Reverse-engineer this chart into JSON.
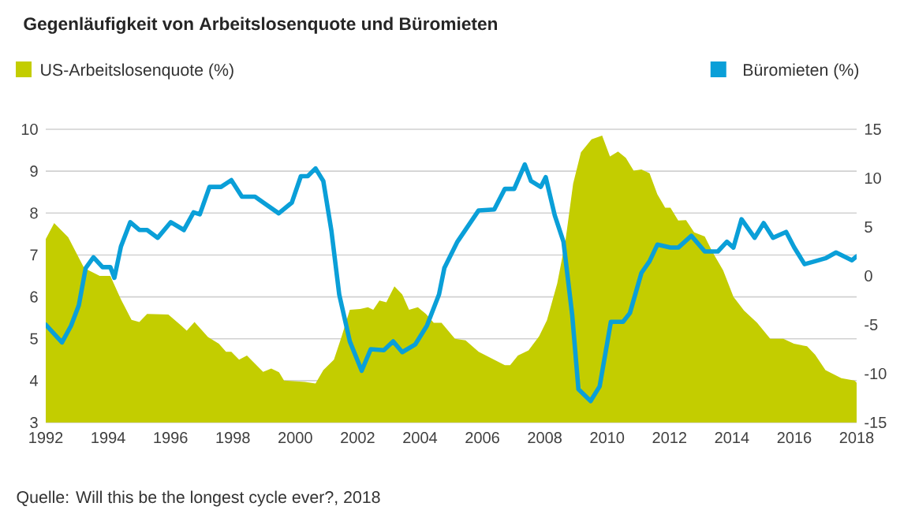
{
  "chart_data": {
    "type": "area",
    "title": "Gegenläufigkeit von Arbeitslosenquote und Büromieten",
    "annotations": [
      "Quelle: Will this be the longest cycle ever?, 2018"
    ],
    "xlim": [
      1992,
      2018
    ],
    "xticks": [
      1992,
      1994,
      1996,
      1998,
      2000,
      2002,
      2004,
      2006,
      2008,
      2010,
      2012,
      2014,
      2016,
      2018
    ],
    "ylim": [
      3,
      10
    ],
    "yticks": [
      3,
      4,
      5,
      6,
      7,
      8,
      9,
      10
    ],
    "y2lim": [
      -15,
      15
    ],
    "y2ticks": [
      -15,
      -10,
      -5,
      0,
      5,
      10,
      15
    ],
    "grid": "y",
    "legend": "top",
    "series": [
      {
        "name": "US-Arbeitslosenquote (%)",
        "color": "#c3cd00",
        "x": [
          1992,
          1992.27,
          1992.72,
          1993.23,
          1993.73,
          1994.07,
          1994.41,
          1994.75,
          1995.0,
          1995.25,
          1995.93,
          1996.35,
          1996.52,
          1996.77,
          1997.2,
          1997.55,
          1997.78,
          1997.95,
          1998.2,
          1998.45,
          1998.97,
          1999.23,
          1999.48,
          1999.64,
          2000.31,
          2000.65,
          2000.9,
          2001.24,
          2001.49,
          2001.75,
          2002.08,
          2002.33,
          2002.5,
          2002.7,
          2002.92,
          2003.18,
          2003.43,
          2003.65,
          2003.93,
          2004.19,
          2004.44,
          2004.69,
          2005.12,
          2005.46,
          2005.88,
          2006.3,
          2006.72,
          2006.89,
          2007.14,
          2007.48,
          2007.82,
          2008.07,
          2008.4,
          2008.66,
          2008.91,
          2009.16,
          2009.5,
          2009.84,
          2010.09,
          2010.35,
          2010.6,
          2010.85,
          2011.1,
          2011.36,
          2011.61,
          2011.86,
          2012.03,
          2012.28,
          2012.53,
          2012.79,
          2013.13,
          2013.38,
          2013.72,
          2014.05,
          2014.39,
          2014.81,
          2015.23,
          2015.65,
          2015.99,
          2016.41,
          2016.67,
          2017.0,
          2017.51,
          2017.93,
          2018
        ],
        "values": [
          7.38,
          7.76,
          7.42,
          6.69,
          6.5,
          6.5,
          5.94,
          5.45,
          5.4,
          5.59,
          5.58,
          5.31,
          5.19,
          5.4,
          5.04,
          4.88,
          4.69,
          4.69,
          4.5,
          4.6,
          4.21,
          4.29,
          4.2,
          4.0,
          3.97,
          3.93,
          4.25,
          4.5,
          5.06,
          5.69,
          5.71,
          5.75,
          5.69,
          5.91,
          5.87,
          6.25,
          6.06,
          5.69,
          5.75,
          5.59,
          5.38,
          5.38,
          5.0,
          4.96,
          4.69,
          4.53,
          4.37,
          4.37,
          4.6,
          4.72,
          5.06,
          5.44,
          6.32,
          7.32,
          8.7,
          9.45,
          9.76,
          9.85,
          9.35,
          9.47,
          9.32,
          9.01,
          9.04,
          8.95,
          8.45,
          8.13,
          8.13,
          7.82,
          7.83,
          7.54,
          7.44,
          7.07,
          6.63,
          6.0,
          5.67,
          5.38,
          5.0,
          5.0,
          4.88,
          4.82,
          4.62,
          4.25,
          4.06,
          4.0,
          3.95
        ]
      },
      {
        "name": "Büromieten (%)",
        "type": "line",
        "axis": "y2",
        "color": "#0a9fd8",
        "x": [
          1992,
          1992.52,
          1992.81,
          1993.06,
          1993.28,
          1993.53,
          1993.82,
          1994.07,
          1994.2,
          1994.41,
          1994.71,
          1995.0,
          1995.25,
          1995.59,
          1996.01,
          1996.43,
          1996.74,
          1996.94,
          1997.25,
          1997.62,
          1997.95,
          1998.29,
          1998.71,
          1999.47,
          1999.89,
          2000.18,
          2000.4,
          2000.65,
          2000.9,
          2001.16,
          2001.41,
          2001.75,
          2002.13,
          2002.42,
          2002.84,
          2003.14,
          2003.43,
          2003.85,
          2004.22,
          2004.61,
          2004.78,
          2005.2,
          2005.88,
          2006.38,
          2006.72,
          2007.02,
          2007.36,
          2007.56,
          2007.87,
          2008.03,
          2008.32,
          2008.6,
          2008.88,
          2009.08,
          2009.47,
          2009.76,
          2010.12,
          2010.51,
          2010.73,
          2011.1,
          2011.36,
          2011.61,
          2012.03,
          2012.28,
          2012.7,
          2013.13,
          2013.55,
          2013.84,
          2014.05,
          2014.31,
          2014.73,
          2015.02,
          2015.32,
          2015.74,
          2016.0,
          2016.33,
          2016.67,
          2017.0,
          2017.34,
          2017.85,
          2018
        ],
        "values": [
          -5.0,
          -6.8,
          -5.1,
          -3.0,
          0.8,
          1.9,
          0.9,
          0.9,
          -0.2,
          3.0,
          5.5,
          4.7,
          4.7,
          3.9,
          5.5,
          4.7,
          6.5,
          6.3,
          9.1,
          9.1,
          9.8,
          8.1,
          8.1,
          6.4,
          7.5,
          10.2,
          10.2,
          11.0,
          9.7,
          4.6,
          -1.9,
          -6.7,
          -9.7,
          -7.5,
          -7.6,
          -6.7,
          -7.8,
          -7.0,
          -5.1,
          -1.9,
          0.8,
          3.5,
          6.7,
          6.8,
          8.9,
          8.9,
          11.4,
          9.7,
          9.1,
          10.1,
          6.2,
          3.5,
          -4.0,
          -11.6,
          -12.8,
          -11.3,
          -4.7,
          -4.7,
          -3.8,
          0.3,
          1.5,
          3.2,
          2.9,
          2.9,
          4.1,
          2.5,
          2.5,
          3.5,
          2.9,
          5.8,
          3.9,
          5.4,
          3.9,
          4.5,
          2.9,
          1.2,
          1.5,
          1.8,
          2.4,
          1.6,
          2.0
        ]
      }
    ]
  }
}
